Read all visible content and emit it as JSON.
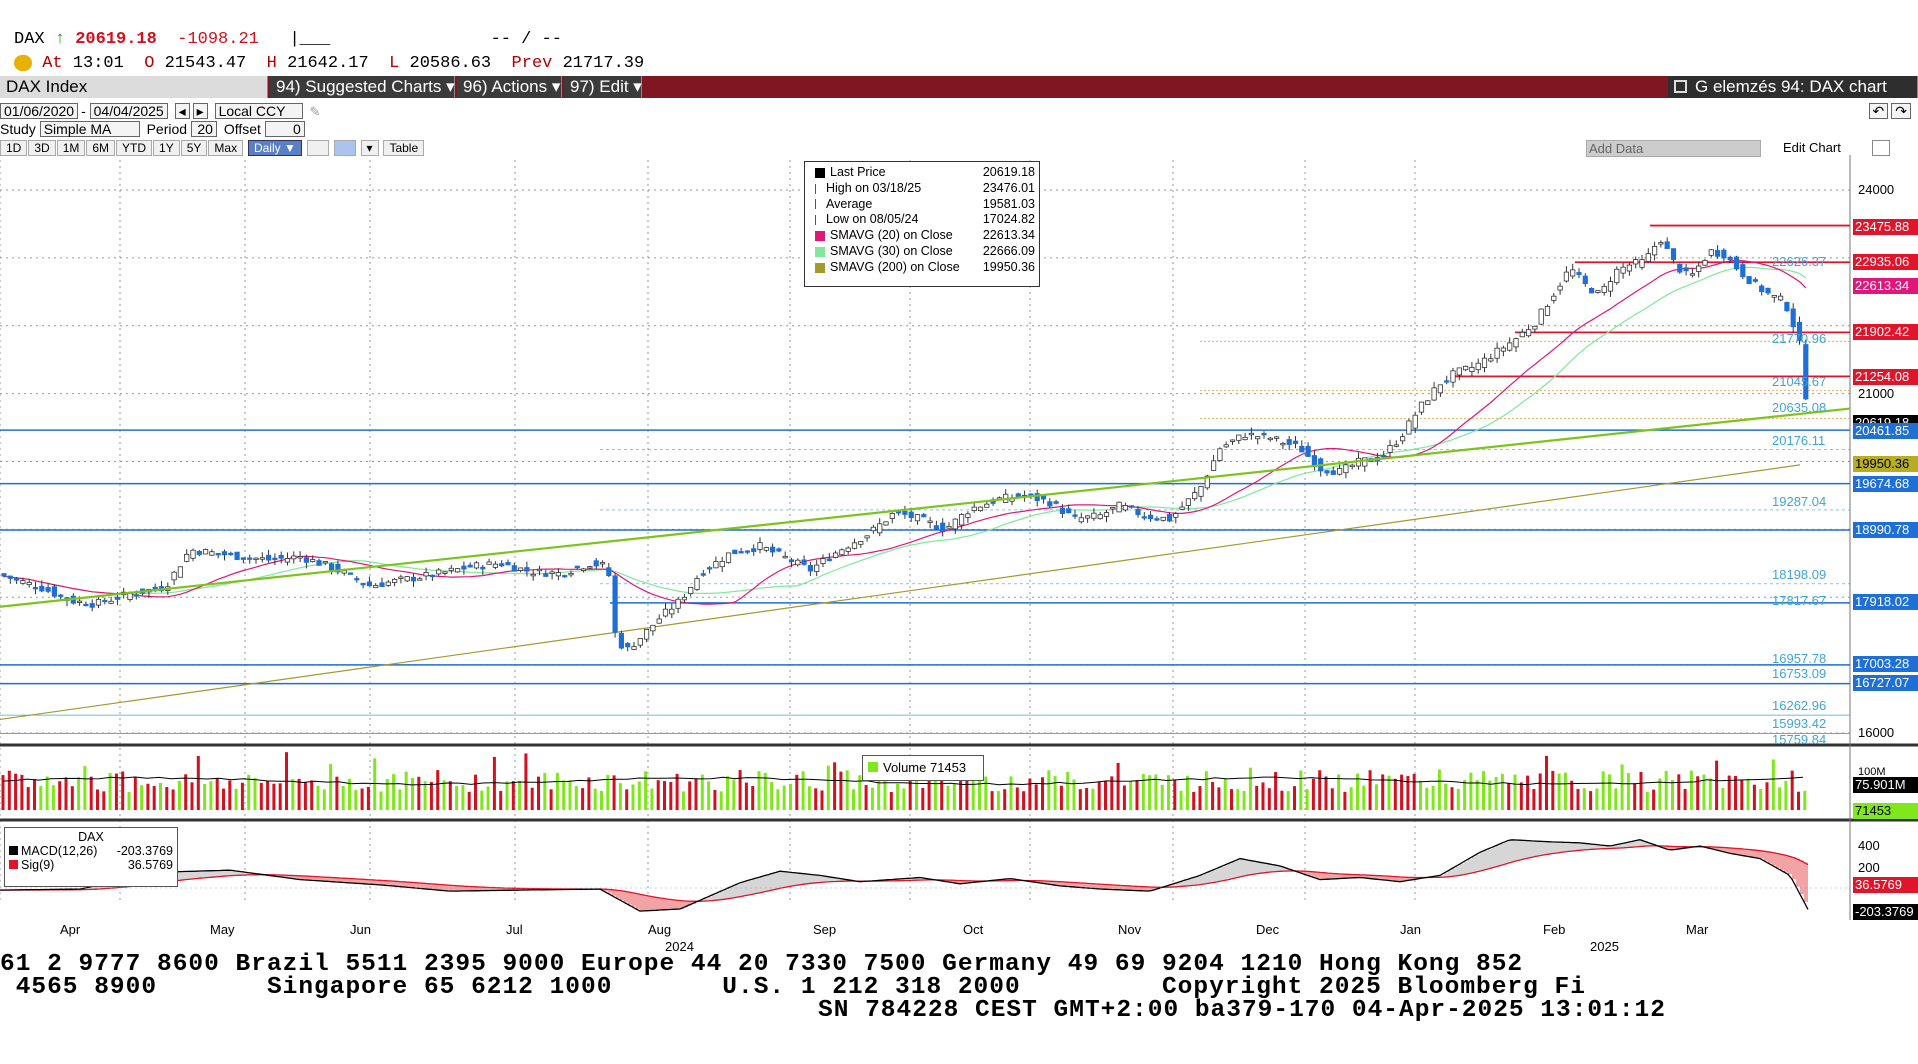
{
  "quote": {
    "ticker": "DAX",
    "arrow": "↑",
    "last": "20619.18",
    "change": "-1098.21",
    "sparkline": "|___",
    "dashes": "-- / --",
    "at_label": "At",
    "at_time": "13:01",
    "o_label": "O",
    "open": "21543.47",
    "h_label": "H",
    "high": "21642.17",
    "l_label": "L",
    "low": "20586.63",
    "prev_label": "Prev",
    "prev": "21717.39"
  },
  "menu": {
    "index": "DAX Index",
    "suggested": "94) Suggested Charts ▾",
    "actions": "96) Actions ▾",
    "edit": "97) Edit ▾",
    "title": "G elemzés 94: DAX chart"
  },
  "controls": {
    "start_date": "01/06/2020",
    "end_date": "04/04/2025",
    "currency": "Local CCY",
    "study_label": "Study",
    "study": "Simple MA",
    "period_label": "Period",
    "period": "20",
    "offset_label": "Offset",
    "offset": "0"
  },
  "range_buttons": [
    "1D",
    "3D",
    "1M",
    "6M",
    "YTD",
    "1Y",
    "5Y",
    "Max"
  ],
  "frequency": "Daily ▼",
  "table_label": "Table",
  "add_data": "Add Data",
  "edit_chart": "Edit Chart",
  "legend": [
    {
      "label": "Last Price",
      "value": "20619.18",
      "color": "#000000"
    },
    {
      "label": "High on 03/18/25",
      "value": "23476.01",
      "color": ""
    },
    {
      "label": "Average",
      "value": "19581.03",
      "color": ""
    },
    {
      "label": "Low on 08/05/24",
      "value": "17024.82",
      "color": ""
    },
    {
      "label": "SMAVG (20)  on Close",
      "value": "22613.34",
      "color": "#e0177a"
    },
    {
      "label": "SMAVG (30)  on Close",
      "value": "22666.09",
      "color": "#7fe89a"
    },
    {
      "label": "SMAVG (200)  on Close",
      "value": "19950.36",
      "color": "#a39a2b"
    }
  ],
  "y_ticks": [
    "24000",
    "21000",
    "16000"
  ],
  "price_tags": [
    {
      "text": "23475.88",
      "color": "#e0152b"
    },
    {
      "text": "22935.06",
      "color": "#e0152b"
    },
    {
      "text": "22613.34",
      "color": "#e0177a"
    },
    {
      "text": "21902.42",
      "color": "#e0152b"
    },
    {
      "text": "21254.08",
      "color": "#e0152b"
    },
    {
      "text": "20619.18",
      "color": "#000000"
    },
    {
      "text": "20461.85",
      "color": "#1e6fd6"
    },
    {
      "text": "19950.36",
      "color": "#8f8a1f"
    },
    {
      "text": "19674.68",
      "color": "#1e6fd6"
    },
    {
      "text": "18990.78",
      "color": "#1e6fd6"
    },
    {
      "text": "17918.02",
      "color": "#1e6fd6"
    },
    {
      "text": "17003.28",
      "color": "#1e6fd6"
    },
    {
      "text": "16727.07",
      "color": "#1e6fd6"
    }
  ],
  "level_labels": [
    "22626.37",
    "21770.96",
    "21045.67",
    "20635.08",
    "20176.11",
    "19287.04",
    "18198.09",
    "17817.67",
    "16957.78",
    "16753.09",
    "16262.96",
    "15993.42",
    "15759.84"
  ],
  "volume": {
    "legend": "Volume 71453",
    "tick": "100M",
    "avg_tag": "75.901M",
    "last_tag": "71453"
  },
  "macd": {
    "title": "DAX",
    "macd_label": "MACD(12,26)",
    "macd_value": "-203.3769",
    "sig_label": "Sig(9)",
    "sig_value": "36.5769",
    "ticks": [
      "400",
      "200"
    ],
    "tag_sig": "36.5769",
    "tag_macd": "-203.3769"
  },
  "x_months": [
    "Apr",
    "May",
    "Jun",
    "Jul",
    "Aug",
    "Sep",
    "Oct",
    "Nov",
    "Dec",
    "Jan",
    "Feb",
    "Mar"
  ],
  "x_years": [
    "2024",
    "2025"
  ],
  "footer": {
    "line1": "61 2 9777 8600 Brazil 5511 2395 9000 Europe 44 20 7330 7500 Germany 49 69 9204 1210 Hong Kong 852",
    "line2": " 4565 8900       Singapore 65 6212 1000       U.S. 1 212 318 2000         Copyright 2025 Bloomberg Fi",
    "line3": "SN 784228 CEST GMT+2:00 ba379-170 04-Apr-2025 13:01:12"
  },
  "colors": {
    "up_candle": "#ffffff",
    "down_candle": "#1e6fd6",
    "trendline": "#7cc41c",
    "vol_up": "#7fe81c",
    "vol_down": "#d40f1e",
    "macd_line": "#000000",
    "sig_line": "#e0152b"
  }
}
